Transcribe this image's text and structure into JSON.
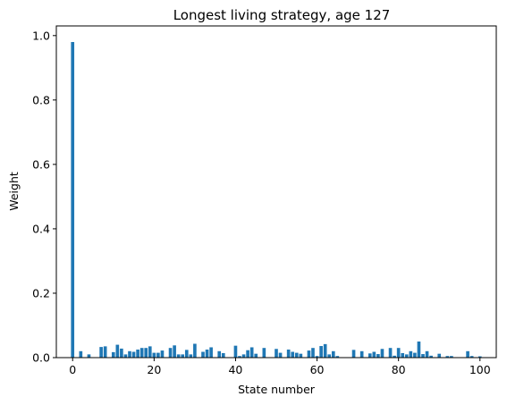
{
  "chart_data": {
    "type": "bar",
    "title": "Longest living strategy, age 127",
    "xlabel": "State number",
    "ylabel": "Weight",
    "xlim": [
      -4,
      104
    ],
    "ylim": [
      0,
      1.03
    ],
    "xticks": [
      0,
      20,
      40,
      60,
      80,
      100
    ],
    "xtick_labels": [
      "0",
      "20",
      "40",
      "60",
      "80",
      "100"
    ],
    "yticks": [
      0.0,
      0.2,
      0.4,
      0.6,
      0.8,
      1.0
    ],
    "ytick_labels": [
      "0.0",
      "0.2",
      "0.4",
      "0.6",
      "0.8",
      "1.0"
    ],
    "grid": false,
    "bar_color": "#1f77b4",
    "x": [
      0,
      2,
      4,
      7,
      8,
      10,
      11,
      12,
      13,
      14,
      15,
      16,
      17,
      18,
      19,
      20,
      21,
      22,
      24,
      25,
      26,
      27,
      28,
      29,
      30,
      32,
      33,
      34,
      36,
      37,
      40,
      41,
      42,
      43,
      44,
      45,
      47,
      50,
      51,
      53,
      54,
      55,
      56,
      58,
      59,
      60,
      61,
      62,
      63,
      64,
      65,
      69,
      71,
      73,
      74,
      75,
      76,
      78,
      79,
      80,
      81,
      82,
      83,
      84,
      85,
      86,
      87,
      88,
      90,
      92,
      93,
      97,
      98,
      100
    ],
    "values": [
      0.98,
      0.02,
      0.01,
      0.033,
      0.035,
      0.017,
      0.04,
      0.028,
      0.01,
      0.02,
      0.018,
      0.025,
      0.03,
      0.03,
      0.035,
      0.015,
      0.015,
      0.022,
      0.03,
      0.038,
      0.01,
      0.01,
      0.024,
      0.01,
      0.043,
      0.018,
      0.025,
      0.032,
      0.02,
      0.014,
      0.037,
      0.005,
      0.01,
      0.023,
      0.032,
      0.012,
      0.03,
      0.027,
      0.015,
      0.025,
      0.018,
      0.015,
      0.012,
      0.022,
      0.03,
      0.005,
      0.036,
      0.042,
      0.01,
      0.02,
      0.005,
      0.024,
      0.02,
      0.013,
      0.018,
      0.011,
      0.027,
      0.03,
      0.006,
      0.03,
      0.014,
      0.01,
      0.02,
      0.015,
      0.05,
      0.011,
      0.02,
      0.006,
      0.012,
      0.005,
      0.005,
      0.02,
      0.005,
      0.004
    ]
  }
}
